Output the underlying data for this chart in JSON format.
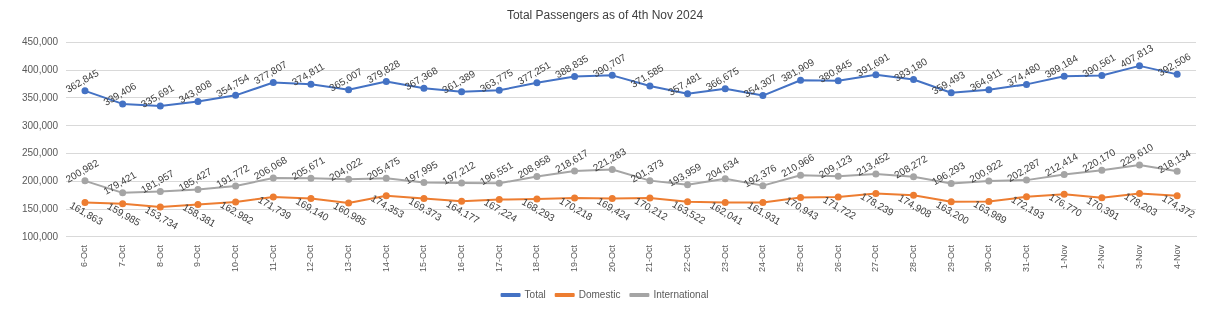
{
  "chart_data": {
    "type": "line",
    "title": "Total Passengers as of 4th Nov 2024",
    "categories": [
      "6-Oct",
      "7-Oct",
      "8-Oct",
      "9-Oct",
      "10-Oct",
      "11-Oct",
      "12-Oct",
      "13-Oct",
      "14-Oct",
      "15-Oct",
      "16-Oct",
      "17-Oct",
      "18-Oct",
      "19-Oct",
      "20-Oct",
      "21-Oct",
      "22-Oct",
      "23-Oct",
      "24-Oct",
      "25-Oct",
      "26-Oct",
      "27-Oct",
      "28-Oct",
      "29-Oct",
      "30-Oct",
      "31-Oct",
      "1-Nov",
      "2-Nov",
      "3-Nov",
      "4-Nov"
    ],
    "series": [
      {
        "name": "Total",
        "color": "#4472c4",
        "values": [
          362845,
          339406,
          335691,
          343808,
          354754,
          377807,
          374811,
          365007,
          379828,
          367368,
          361389,
          363775,
          377251,
          388835,
          390707,
          371585,
          357481,
          366675,
          354307,
          381909,
          380845,
          391691,
          383180,
          359493,
          364911,
          374480,
          389184,
          390561,
          407813,
          392506
        ],
        "value_labels": [
          "362,845",
          "339,406",
          "335,691",
          "343,808",
          "354,754",
          "377,807",
          "374,811",
          "365,007",
          "379,828",
          "367,368",
          "361,389",
          "363,775",
          "377,251",
          "388,835",
          "390,707",
          "371,585",
          "357,481",
          "366,675",
          "354,307",
          "381,909",
          "380,845",
          "391,691",
          "383,180",
          "359,493",
          "364,911",
          "374,480",
          "389,184",
          "390,561",
          "407,813",
          "392,506"
        ]
      },
      {
        "name": "Domestic",
        "color": "#ed7d31",
        "values": [
          161863,
          159985,
          153734,
          158381,
          162982,
          171739,
          169140,
          160985,
          174353,
          169373,
          164177,
          167224,
          168293,
          170218,
          169424,
          170212,
          163522,
          162041,
          161931,
          170943,
          171722,
          178239,
          174908,
          163200,
          163989,
          172193,
          176770,
          170391,
          178203,
          174372
        ],
        "value_labels": [
          "161,863",
          "159,985",
          "153,734",
          "158,381",
          "162,982",
          "171,739",
          "169,140",
          "160,985",
          "174,353",
          "169,373",
          "164,177",
          "167,224",
          "168,293",
          "170,218",
          "169,424",
          "170,212",
          "163,522",
          "162,041",
          "161,931",
          "170,943",
          "171,722",
          "178,239",
          "174,908",
          "163,200",
          "163,989",
          "172,193",
          "176,770",
          "170,391",
          "178,203",
          "174,372"
        ]
      },
      {
        "name": "International",
        "color": "#a5a5a5",
        "values": [
          200982,
          179421,
          181957,
          185427,
          191772,
          206068,
          205671,
          204022,
          205475,
          197995,
          197212,
          196551,
          208958,
          218617,
          221283,
          201373,
          193959,
          204634,
          192376,
          210966,
          209123,
          213452,
          208272,
          196293,
          200922,
          202287,
          212414,
          220170,
          229610,
          218134
        ],
        "value_labels": [
          "200,982",
          "179,421",
          "181,957",
          "185,427",
          "191,772",
          "206,068",
          "205,671",
          "204,022",
          "205,475",
          "197,995",
          "197,212",
          "196,551",
          "208,958",
          "218,617",
          "221,283",
          "201,373",
          "193,959",
          "204,634",
          "192,376",
          "210,966",
          "209,123",
          "213,452",
          "208,272",
          "196,293",
          "200,922",
          "202,287",
          "212,414",
          "220,170",
          "229,610",
          "218,134"
        ]
      }
    ],
    "ylim": [
      100000,
      450000
    ],
    "yticks": [
      {
        "value": 100000,
        "label": "100,000"
      },
      {
        "value": 150000,
        "label": "150,000"
      },
      {
        "value": 200000,
        "label": "200,000"
      },
      {
        "value": 250000,
        "label": "250,000"
      },
      {
        "value": 300000,
        "label": "300,000"
      },
      {
        "value": 350000,
        "label": "350,000"
      },
      {
        "value": 400000,
        "label": "400,000"
      },
      {
        "value": 450000,
        "label": "450,000"
      }
    ],
    "grid": "y",
    "legend": "bottom",
    "marker": "circle",
    "line_style": "solid"
  }
}
